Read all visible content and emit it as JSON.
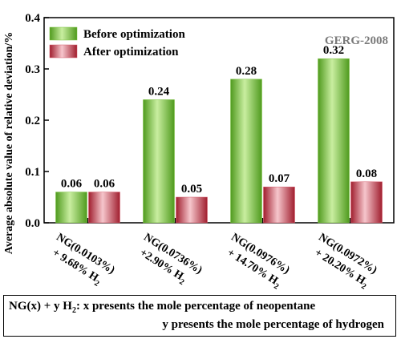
{
  "chart_data": {
    "type": "bar",
    "ylabel": "Average absolute value of relative deviation/%",
    "ylim": [
      0,
      0.4
    ],
    "yticks": [
      "0.0",
      "0.1",
      "0.2",
      "0.3",
      "0.4"
    ],
    "categories": [
      {
        "line1": "NG(0.0103%)",
        "line2": "+ 9.68% H",
        "sub": "2"
      },
      {
        "line1": "NG(0.0736%)",
        "line2": "+2.90% H",
        "sub": "2"
      },
      {
        "line1": "NG(0.0976%)",
        "line2": "+ 14.70% H",
        "sub": "2"
      },
      {
        "line1": "NG(0.0972%)",
        "line2": "+ 20.20% H",
        "sub": "2"
      }
    ],
    "series": [
      {
        "name": "Before optimization",
        "values": [
          0.06,
          0.24,
          0.28,
          0.32
        ],
        "labels": [
          "0.06",
          "0.24",
          "0.28",
          "0.32"
        ],
        "color": "#7cc440"
      },
      {
        "name": "After optimization",
        "values": [
          0.06,
          0.05,
          0.07,
          0.08
        ],
        "labels": [
          "0.06",
          "0.05",
          "0.07",
          "0.08"
        ],
        "color": "#d65a6a"
      }
    ],
    "annotation": "GERG-2008",
    "legend_position": "top-left",
    "grid": false
  },
  "note": {
    "line1_a": "NG(x) + y H",
    "line1_sub": "2",
    "line1_b": ": x presents the mole percentage of neopentane",
    "line2": "y presents the mole percentage of hydrogen"
  }
}
